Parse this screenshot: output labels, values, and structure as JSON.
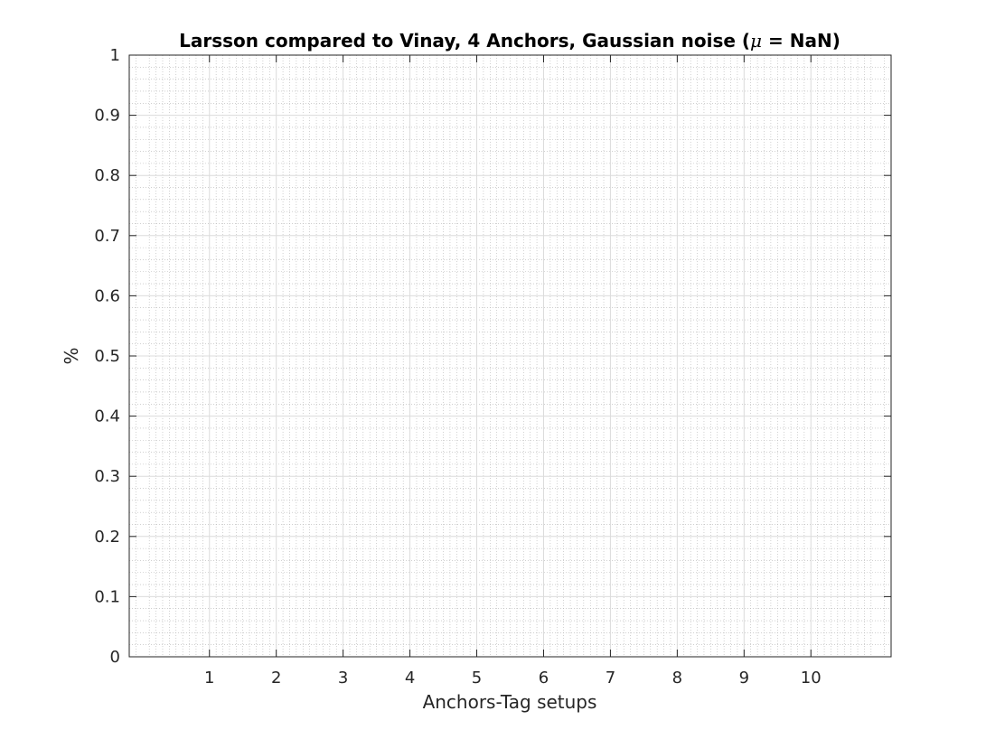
{
  "chart_data": {
    "type": "bar",
    "title": "Larsson compared to Vinay, 4 Anchors, Gaussian noise (μ = NaN)",
    "title_parts": {
      "before": "Larsson compared to Vinay, 4 Anchors, Gaussian noise (",
      "symbol": "μ",
      "after": " = NaN)"
    },
    "xlabel": "Anchors-Tag setups",
    "ylabel": "%",
    "categories": [
      "1",
      "2",
      "3",
      "4",
      "5",
      "6",
      "7",
      "8",
      "9",
      "10"
    ],
    "x_ticks": [
      1,
      2,
      3,
      4,
      5,
      6,
      7,
      8,
      9,
      10
    ],
    "y_ticks": [
      0,
      0.1,
      0.2,
      0.3,
      0.4,
      0.5,
      0.6,
      0.7,
      0.8,
      0.9,
      1
    ],
    "y_tick_labels": [
      "0",
      "0.1",
      "0.2",
      "0.3",
      "0.4",
      "0.5",
      "0.6",
      "0.7",
      "0.8",
      "0.9",
      "1"
    ],
    "xlim": [
      -0.2,
      11.2
    ],
    "ylim": [
      0,
      1
    ],
    "grid": "major and minor",
    "legend": "none",
    "series": [],
    "colors": {
      "axis": "#262626",
      "major_grid": "#dcdcdc",
      "minor_grid": "#b4b4b4",
      "background": "#ffffff"
    }
  }
}
